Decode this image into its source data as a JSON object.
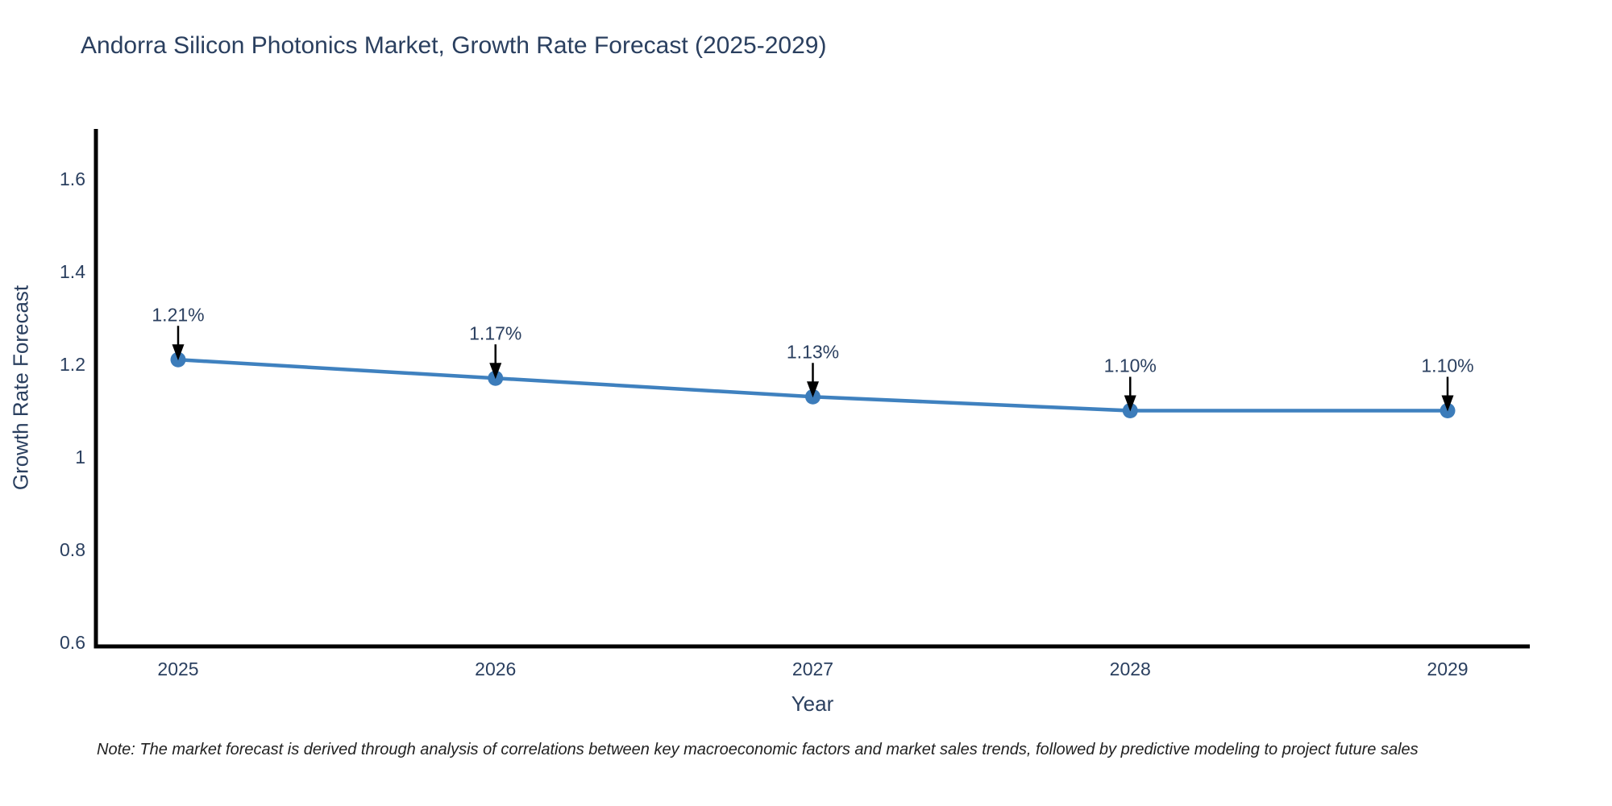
{
  "note": "Note: The market forecast is derived through analysis of correlations between key macroeconomic factors and market sales trends, followed by predictive modeling to project future sales",
  "chart_data": {
    "type": "line",
    "title": "Andorra Silicon Photonics Market, Growth Rate Forecast (2025-2029)",
    "xlabel": "Year",
    "ylabel": "Growth Rate Forecast",
    "x": [
      2025,
      2026,
      2027,
      2028,
      2029
    ],
    "xtick_labels": [
      "2025",
      "2026",
      "2027",
      "2028",
      "2029"
    ],
    "values": [
      1.21,
      1.17,
      1.13,
      1.1,
      1.1
    ],
    "point_labels": [
      "1.21%",
      "1.17%",
      "1.13%",
      "1.10%",
      "1.10%"
    ],
    "yticks": [
      0.6,
      0.8,
      1,
      1.2,
      1.4,
      1.6
    ],
    "ytick_labels": [
      "0.6",
      "0.8",
      "1",
      "1.2",
      "1.4",
      "1.6"
    ],
    "ylim": [
      0.6,
      1.72
    ],
    "grid": false,
    "legend": "none",
    "colors": {
      "line": "#3f81bf",
      "marker": "#3c7cba",
      "axis": "#000000",
      "tick_text": "#2a3f5f",
      "annotation_text": "#2a3f5f",
      "annotation_arrow": "#000000"
    }
  }
}
